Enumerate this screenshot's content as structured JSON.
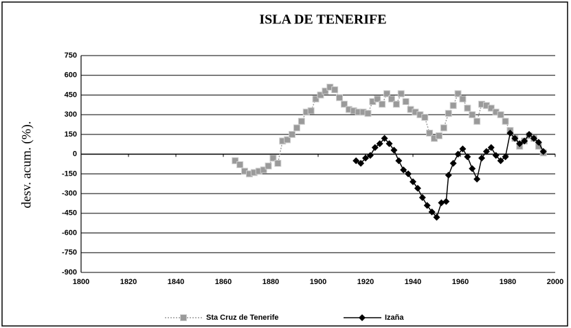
{
  "chart_data": {
    "type": "line",
    "title": "ISLA DE TENERIFE",
    "y_label": "desv. acum. (%).",
    "xlim": [
      1800,
      2000
    ],
    "xticks": [
      1800,
      1820,
      1840,
      1860,
      1880,
      1900,
      1920,
      1940,
      1960,
      1980,
      2000
    ],
    "ylim": [
      -900,
      750
    ],
    "yticks": [
      750,
      600,
      450,
      300,
      150,
      0,
      -150,
      -300,
      -450,
      -600,
      -750,
      -900
    ],
    "grid": true,
    "legend": "bottom",
    "series": [
      {
        "name": "Sta Cruz de Tenerife",
        "color": "#9a9a9a",
        "x": [
          1865,
          1867,
          1869,
          1871,
          1873,
          1875,
          1877,
          1879,
          1881,
          1883,
          1885,
          1887,
          1889,
          1891,
          1893,
          1895,
          1897,
          1899,
          1901,
          1903,
          1905,
          1907,
          1909,
          1911,
          1913,
          1915,
          1917,
          1919,
          1921,
          1923,
          1925,
          1927,
          1929,
          1931,
          1933,
          1935,
          1937,
          1939,
          1941,
          1943,
          1945,
          1947,
          1949,
          1951,
          1953,
          1955,
          1957,
          1959,
          1961,
          1963,
          1965,
          1967,
          1969,
          1971,
          1973,
          1975,
          1977,
          1979,
          1981,
          1983,
          1985,
          1987,
          1989,
          1991,
          1993,
          1995
        ],
        "values": [
          -50,
          -80,
          -130,
          -150,
          -140,
          -130,
          -120,
          -90,
          -30,
          -70,
          100,
          110,
          150,
          200,
          250,
          320,
          330,
          420,
          450,
          480,
          510,
          490,
          430,
          380,
          340,
          330,
          320,
          320,
          310,
          400,
          420,
          380,
          460,
          420,
          380,
          460,
          400,
          340,
          320,
          300,
          280,
          160,
          120,
          140,
          200,
          310,
          370,
          460,
          420,
          350,
          300,
          250,
          380,
          370,
          350,
          320,
          300,
          250,
          180,
          120,
          60,
          100,
          140,
          120,
          60,
          10
        ]
      },
      {
        "name": "Izaña",
        "color": "#000000",
        "x": [
          1916,
          1918,
          1920,
          1922,
          1924,
          1926,
          1928,
          1930,
          1932,
          1934,
          1936,
          1938,
          1940,
          1942,
          1944,
          1946,
          1948,
          1950,
          1952,
          1954,
          1955,
          1957,
          1959,
          1961,
          1963,
          1965,
          1967,
          1969,
          1971,
          1973,
          1975,
          1977,
          1979,
          1981,
          1983,
          1985,
          1987,
          1989,
          1991,
          1993,
          1995
        ],
        "values": [
          -50,
          -70,
          -30,
          -10,
          50,
          80,
          120,
          80,
          30,
          -50,
          -120,
          -150,
          -210,
          -260,
          -330,
          -390,
          -440,
          -480,
          -370,
          -360,
          -160,
          -70,
          0,
          40,
          -20,
          -110,
          -190,
          -30,
          20,
          50,
          -10,
          -50,
          -20,
          160,
          120,
          80,
          100,
          150,
          120,
          90,
          20
        ]
      }
    ]
  }
}
